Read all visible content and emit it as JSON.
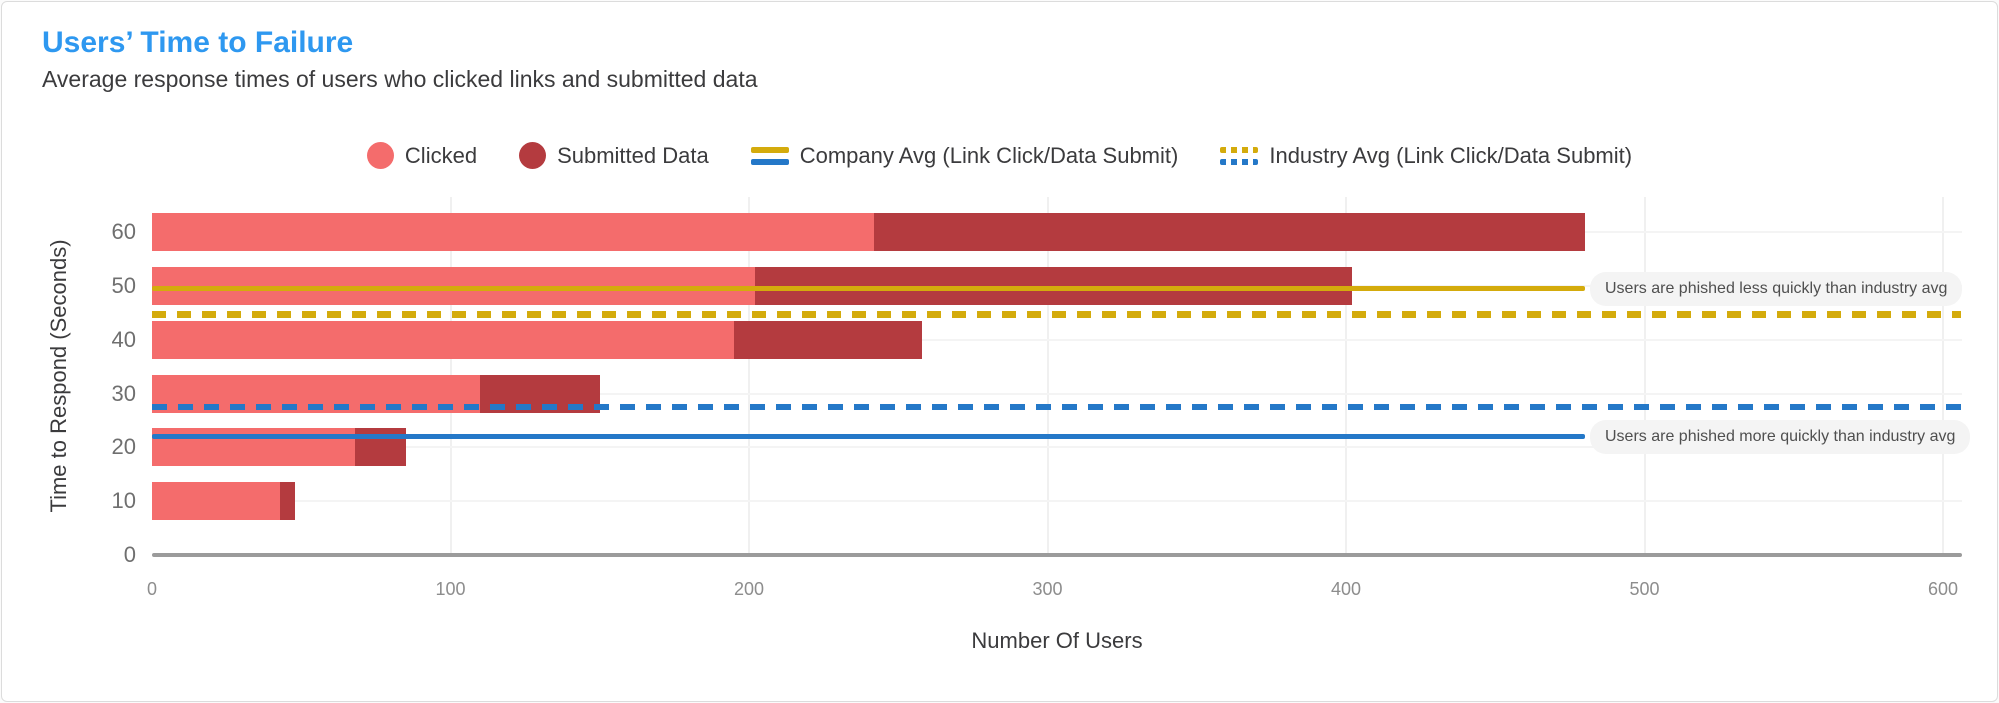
{
  "header": {
    "title": "Users’ Time to Failure",
    "subtitle": "Average response times of users who clicked links and submitted data"
  },
  "legend": {
    "items": [
      {
        "name": "clicked",
        "label": "Clicked",
        "swatch": "circle",
        "colors": [
          "#f46c6c"
        ]
      },
      {
        "name": "submitted-data",
        "label": "Submitted Data",
        "swatch": "circle",
        "colors": [
          "#b43b3f"
        ]
      },
      {
        "name": "company-avg",
        "label": "Company Avg (Link Click/Data Submit)",
        "swatch": "solid-lines",
        "colors": [
          "#d4ab0c",
          "#2478c8"
        ]
      },
      {
        "name": "industry-avg",
        "label": "Industry Avg (Link Click/Data Submit)",
        "swatch": "dotted-lines",
        "colors": [
          "#d4ab0c",
          "#2478c8"
        ]
      }
    ]
  },
  "chart_data": {
    "type": "bar",
    "orientation": "horizontal",
    "stacked": true,
    "title": "Users’ Time to Failure",
    "xlabel": "Number Of Users",
    "ylabel": "Time to Respond (Seconds)",
    "xlim": [
      0,
      600
    ],
    "x_ticks": [
      0,
      100,
      200,
      300,
      400,
      500,
      600
    ],
    "y_axis_zero_label": "0",
    "grid": {
      "vertical": true,
      "horizontal": true
    },
    "categories": [
      60,
      50,
      40,
      30,
      20,
      10
    ],
    "series": [
      {
        "name": "Clicked",
        "color": "#f46c6c",
        "values": [
          242,
          202,
          195,
          110,
          68,
          43
        ]
      },
      {
        "name": "Submitted Data",
        "color": "#b43b3f",
        "values": [
          238,
          200,
          63,
          40,
          17,
          5
        ]
      }
    ],
    "reference_lines": [
      {
        "id": "company-avg-link-click",
        "label": "Company Avg Link Click",
        "value": 49.5,
        "style": "solid",
        "color": "#d4ab0c",
        "extent": 480
      },
      {
        "id": "industry-avg-link-click",
        "label": "Industry Avg Link Click",
        "value": 44.7,
        "style": "dashed",
        "color": "#d4ab0c",
        "extent": 606
      },
      {
        "id": "industry-avg-data-submit",
        "label": "Industry Avg Data Submit",
        "value": 27.5,
        "style": "dashed",
        "color": "#2478c8",
        "extent": 606
      },
      {
        "id": "company-avg-data-submit",
        "label": "Company Avg Data Submit",
        "value": 22,
        "style": "solid",
        "color": "#2478c8",
        "extent": 480
      }
    ],
    "annotations": [
      {
        "text": "Users are phished less quickly than industry avg",
        "value": 49.5
      },
      {
        "text": "Users are phished more quickly than industry avg",
        "value": 22
      }
    ]
  },
  "colors": {
    "title_accent": "#2e98f0",
    "clicked": "#f46c6c",
    "submitted": "#b43b3f",
    "link_click_line": "#d4ab0c",
    "data_submit_line": "#2478c8",
    "annotation_background": "#f4f4f4"
  }
}
